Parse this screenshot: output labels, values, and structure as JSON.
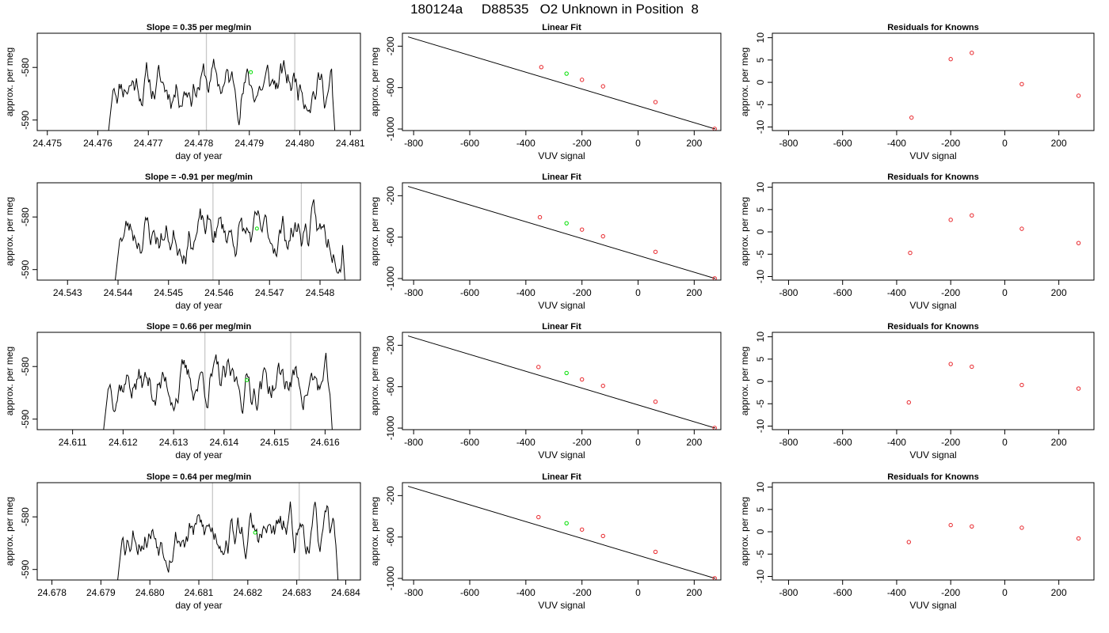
{
  "header": {
    "title": "180124a     D88535   O2 Unknown in Position  8"
  },
  "colors": {
    "trace": "#000000",
    "unknown": "#00e000",
    "known": "#e8262b",
    "vline": "#c8c8c8"
  },
  "chart_data": [
    {
      "type": "line",
      "row": 0,
      "panel": "timeseries",
      "title": "Slope =  0.35  per meg/min",
      "xlabel": "day of year",
      "ylabel": "approx. per meg",
      "xlim": [
        24.4748,
        24.4812
      ],
      "ylim": [
        -592,
        -573.5
      ],
      "xticks": [
        "24.475",
        "24.476",
        "24.477",
        "24.478",
        "24.479",
        "24.480",
        "24.481"
      ],
      "yticks": [
        {
          "v": -580,
          "label": "-580"
        },
        {
          "v": -590,
          "label": "-590"
        }
      ],
      "trace_start": 24.47612,
      "trace_end": 24.48075,
      "vlines": [
        24.47815,
        24.4799
      ],
      "unknown_point": [
        24.47903,
        -580.9
      ],
      "seed": 11
    },
    {
      "type": "scatter",
      "row": 0,
      "panel": "fit",
      "title": "Linear Fit",
      "xlabel": "VUV signal",
      "ylabel": "approx. per meg",
      "xlim": [
        -840,
        295
      ],
      "ylim": [
        -1015,
        -75
      ],
      "xticks": [
        -800,
        -600,
        -400,
        -200,
        0,
        200
      ],
      "yticks": [
        -200,
        -600,
        -1000
      ],
      "line": [
        [
          -820,
          -110
        ],
        [
          275,
          -1000
        ]
      ],
      "known": [
        [
          -345,
          -402
        ],
        [
          -200,
          -525
        ],
        [
          -125,
          -588
        ],
        [
          62,
          -740
        ],
        [
          273,
          -998
        ]
      ],
      "unknown": [
        [
          -255,
          -465
        ]
      ]
    },
    {
      "type": "scatter",
      "row": 0,
      "panel": "residuals",
      "title": "Residuals for Knowns",
      "xlabel": "VUV signal",
      "ylabel": "approx. per meg",
      "xlim": [
        -860,
        330
      ],
      "ylim": [
        -10.8,
        11
      ],
      "xticks": [
        -800,
        -600,
        -400,
        -200,
        0,
        200
      ],
      "yticks": [
        -10,
        -5,
        0,
        5,
        10
      ],
      "known": [
        [
          -345,
          -7.9
        ],
        [
          -200,
          5.2
        ],
        [
          -122,
          6.6
        ],
        [
          63,
          -0.4
        ],
        [
          273,
          -3.0
        ]
      ]
    },
    {
      "type": "line",
      "row": 1,
      "panel": "timeseries",
      "title": "Slope =  -0.91  per meg/min",
      "xlabel": "day of year",
      "ylabel": "approx. per meg",
      "xlim": [
        24.5424,
        24.5488
      ],
      "ylim": [
        -592,
        -573.5
      ],
      "xticks": [
        "24.543",
        "24.544",
        "24.545",
        "24.546",
        "24.547",
        "24.548"
      ],
      "yticks": [
        {
          "v": -580,
          "label": "-580"
        },
        {
          "v": -590,
          "label": "-590"
        }
      ],
      "trace_start": 24.54385,
      "trace_end": 24.54855,
      "vlines": [
        24.54588,
        24.54763
      ],
      "unknown_point": [
        24.54675,
        -582.2
      ],
      "seed": 23
    },
    {
      "type": "scatter",
      "row": 1,
      "panel": "fit",
      "title": "Linear Fit",
      "xlabel": "VUV signal",
      "ylabel": "approx. per meg",
      "xlim": [
        -840,
        295
      ],
      "ylim": [
        -1015,
        -75
      ],
      "xticks": [
        -800,
        -600,
        -400,
        -200,
        0,
        200
      ],
      "yticks": [
        -200,
        -600,
        -1000
      ],
      "line": [
        [
          -820,
          -110
        ],
        [
          275,
          -1000
        ]
      ],
      "known": [
        [
          -350,
          -408
        ],
        [
          -200,
          -527
        ],
        [
          -125,
          -592
        ],
        [
          62,
          -742
        ],
        [
          273,
          -998
        ]
      ],
      "unknown": [
        [
          -255,
          -466
        ]
      ]
    },
    {
      "type": "scatter",
      "row": 1,
      "panel": "residuals",
      "title": "Residuals for Knowns",
      "xlabel": "VUV signal",
      "ylabel": "approx. per meg",
      "xlim": [
        -860,
        330
      ],
      "ylim": [
        -10.8,
        11
      ],
      "xticks": [
        -800,
        -600,
        -400,
        -200,
        0,
        200
      ],
      "yticks": [
        -10,
        -5,
        0,
        5,
        10
      ],
      "known": [
        [
          -350,
          -4.7
        ],
        [
          -200,
          2.7
        ],
        [
          -122,
          3.7
        ],
        [
          63,
          0.7
        ],
        [
          273,
          -2.5
        ]
      ]
    },
    {
      "type": "line",
      "row": 2,
      "panel": "timeseries",
      "title": "Slope =  0.66  per meg/min",
      "xlabel": "day of year",
      "ylabel": "approx. per meg",
      "xlim": [
        24.6103,
        24.6167
      ],
      "ylim": [
        -592,
        -573.5
      ],
      "xticks": [
        "24.611",
        "24.612",
        "24.613",
        "24.614",
        "24.615",
        "24.616"
      ],
      "yticks": [
        {
          "v": -580,
          "label": "-580"
        },
        {
          "v": -590,
          "label": "-590"
        }
      ],
      "trace_start": 24.61152,
      "trace_end": 24.6162,
      "vlines": [
        24.61362,
        24.61532
      ],
      "unknown_point": [
        24.61445,
        -582.6
      ],
      "seed": 37
    },
    {
      "type": "scatter",
      "row": 2,
      "panel": "fit",
      "title": "Linear Fit",
      "xlabel": "VUV signal",
      "ylabel": "approx. per meg",
      "xlim": [
        -840,
        295
      ],
      "ylim": [
        -1015,
        -75
      ],
      "xticks": [
        -800,
        -600,
        -400,
        -200,
        0,
        200
      ],
      "yticks": [
        -200,
        -600,
        -1000
      ],
      "line": [
        [
          -820,
          -110
        ],
        [
          275,
          -1000
        ]
      ],
      "known": [
        [
          -355,
          -410
        ],
        [
          -200,
          -530
        ],
        [
          -125,
          -592
        ],
        [
          62,
          -745
        ],
        [
          273,
          -998
        ]
      ],
      "unknown": [
        [
          -255,
          -468
        ]
      ]
    },
    {
      "type": "scatter",
      "row": 2,
      "panel": "residuals",
      "title": "Residuals for Knowns",
      "xlabel": "VUV signal",
      "ylabel": "approx. per meg",
      "xlim": [
        -860,
        330
      ],
      "ylim": [
        -10.8,
        11
      ],
      "xticks": [
        -800,
        -600,
        -400,
        -200,
        0,
        200
      ],
      "yticks": [
        -10,
        -5,
        0,
        5,
        10
      ],
      "known": [
        [
          -355,
          -4.7
        ],
        [
          -200,
          3.9
        ],
        [
          -122,
          3.3
        ],
        [
          63,
          -0.8
        ],
        [
          273,
          -1.6
        ]
      ]
    },
    {
      "type": "line",
      "row": 3,
      "panel": "timeseries",
      "title": "Slope =  0.64  per meg/min",
      "xlabel": "day of year",
      "ylabel": "approx. per meg",
      "xlim": [
        24.6777,
        24.6843
      ],
      "ylim": [
        -592,
        -573.5
      ],
      "xticks": [
        "24.678",
        "24.679",
        "24.680",
        "24.681",
        "24.682",
        "24.683",
        "24.684"
      ],
      "yticks": [
        {
          "v": -580,
          "label": "-580"
        },
        {
          "v": -590,
          "label": "-590"
        }
      ],
      "trace_start": 24.67925,
      "trace_end": 24.6839,
      "vlines": [
        24.68128,
        24.68305
      ],
      "unknown_point": [
        24.68215,
        -583.0
      ],
      "seed": 53
    },
    {
      "type": "scatter",
      "row": 3,
      "panel": "fit",
      "title": "Linear Fit",
      "xlabel": "VUV signal",
      "ylabel": "approx. per meg",
      "xlim": [
        -840,
        295
      ],
      "ylim": [
        -1015,
        -75
      ],
      "xticks": [
        -800,
        -600,
        -400,
        -200,
        0,
        200
      ],
      "yticks": [
        -200,
        -600,
        -1000
      ],
      "line": [
        [
          -820,
          -110
        ],
        [
          275,
          -1000
        ]
      ],
      "known": [
        [
          -355,
          -408
        ],
        [
          -200,
          -528
        ],
        [
          -125,
          -590
        ],
        [
          62,
          -743
        ],
        [
          273,
          -998
        ]
      ],
      "unknown": [
        [
          -255,
          -467
        ]
      ]
    },
    {
      "type": "scatter",
      "row": 3,
      "panel": "residuals",
      "title": "Residuals for Knowns",
      "xlabel": "VUV signal",
      "ylabel": "approx. per meg",
      "xlim": [
        -860,
        330
      ],
      "ylim": [
        -10.8,
        11
      ],
      "xticks": [
        -800,
        -600,
        -400,
        -200,
        0,
        200
      ],
      "yticks": [
        -10,
        -5,
        0,
        5,
        10
      ],
      "known": [
        [
          -355,
          -2.3
        ],
        [
          -200,
          1.5
        ],
        [
          -122,
          1.2
        ],
        [
          63,
          0.9
        ],
        [
          273,
          -1.5
        ]
      ]
    }
  ]
}
